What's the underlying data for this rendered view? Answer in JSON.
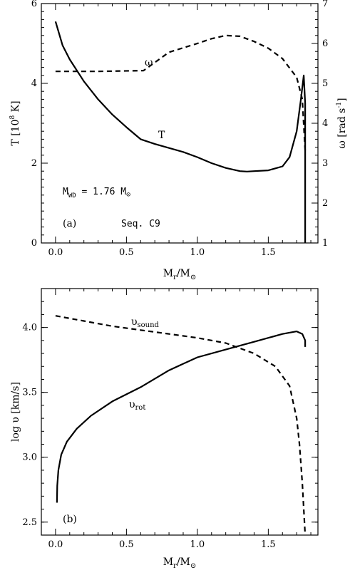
{
  "chart_data": [
    {
      "type": "line",
      "panel_label": "(a)",
      "xlabel": "M_r/M_⊙",
      "ylabel": "T [10^8 K]",
      "ylabel_right": "ω [rad s^-1]",
      "xlim": [
        -0.1,
        1.85
      ],
      "ylim": [
        0,
        6
      ],
      "ylim_right": [
        1,
        7
      ],
      "xticks": [
        0.0,
        0.5,
        1.0,
        1.5
      ],
      "xtick_labels": [
        "0.0",
        "0.5",
        "1.0",
        "1.5"
      ],
      "yticks": [
        0,
        2,
        4,
        6
      ],
      "ytick_labels": [
        "0",
        "2",
        "4",
        "6"
      ],
      "yticks_right": [
        1,
        2,
        3,
        4,
        5,
        6,
        7
      ],
      "ytick_labels_right": [
        "1",
        "2",
        "3",
        "4",
        "5",
        "6",
        "7"
      ],
      "annotations": {
        "mass_label": "M",
        "mass_sub": "WD",
        "mass_value": " = 1.76 M",
        "sun": "⊙",
        "seq": "Seq. C9",
        "T_label": "T",
        "omega_label": "ω"
      },
      "series": [
        {
          "name": "T",
          "style": "solid",
          "axis": "left",
          "x": [
            0.0,
            0.05,
            0.1,
            0.2,
            0.3,
            0.4,
            0.5,
            0.6,
            0.7,
            0.8,
            0.9,
            1.0,
            1.1,
            1.2,
            1.3,
            1.35,
            1.4,
            1.5,
            1.6,
            1.65,
            1.7,
            1.73,
            1.75,
            1.76,
            1.76
          ],
          "y": [
            5.55,
            4.95,
            4.6,
            4.05,
            3.6,
            3.22,
            2.9,
            2.6,
            2.48,
            2.38,
            2.28,
            2.15,
            2.0,
            1.88,
            1.8,
            1.79,
            1.8,
            1.82,
            1.92,
            2.15,
            2.8,
            3.6,
            4.2,
            3.5,
            0.0
          ]
        },
        {
          "name": "ω",
          "style": "dashed",
          "axis": "right",
          "x": [
            0.0,
            0.3,
            0.62,
            0.8,
            1.0,
            1.1,
            1.2,
            1.3,
            1.4,
            1.5,
            1.6,
            1.7,
            1.74,
            1.76
          ],
          "y": [
            5.3,
            5.3,
            5.32,
            5.78,
            6.0,
            6.12,
            6.2,
            6.18,
            6.05,
            5.88,
            5.62,
            5.15,
            4.6,
            3.3
          ]
        }
      ]
    },
    {
      "type": "line",
      "panel_label": "(b)",
      "xlabel": "M_r/M_⊙",
      "ylabel": "log υ [km/s]",
      "xlim": [
        -0.1,
        1.85
      ],
      "ylim": [
        2.4,
        4.3
      ],
      "xticks": [
        0.0,
        0.5,
        1.0,
        1.5
      ],
      "xtick_labels": [
        "0.0",
        "0.5",
        "1.0",
        "1.5"
      ],
      "yticks": [
        2.5,
        3.0,
        3.5,
        4.0
      ],
      "ytick_labels": [
        "2.5",
        "3.0",
        "3.5",
        "4.0"
      ],
      "annotations": {
        "v_sound": "υ",
        "v_sound_sub": "sound",
        "v_rot": "υ",
        "v_rot_sub": "rot"
      },
      "series": [
        {
          "name": "υ_sound",
          "style": "dashed",
          "x": [
            0.0,
            0.2,
            0.4,
            0.6,
            0.8,
            1.0,
            1.2,
            1.4,
            1.55,
            1.65,
            1.7,
            1.72,
            1.74,
            1.75,
            1.76
          ],
          "y": [
            4.09,
            4.05,
            4.01,
            3.98,
            3.95,
            3.92,
            3.88,
            3.8,
            3.7,
            3.55,
            3.3,
            3.1,
            2.8,
            2.6,
            2.4
          ]
        },
        {
          "name": "υ_rot",
          "style": "solid",
          "x": [
            0.01,
            0.012,
            0.02,
            0.04,
            0.08,
            0.15,
            0.25,
            0.4,
            0.6,
            0.8,
            1.0,
            1.2,
            1.4,
            1.6,
            1.7,
            1.74,
            1.76,
            1.76
          ],
          "y": [
            2.65,
            2.78,
            2.9,
            3.02,
            3.12,
            3.22,
            3.32,
            3.43,
            3.54,
            3.67,
            3.77,
            3.83,
            3.89,
            3.95,
            3.97,
            3.95,
            3.9,
            3.85
          ]
        }
      ]
    }
  ]
}
